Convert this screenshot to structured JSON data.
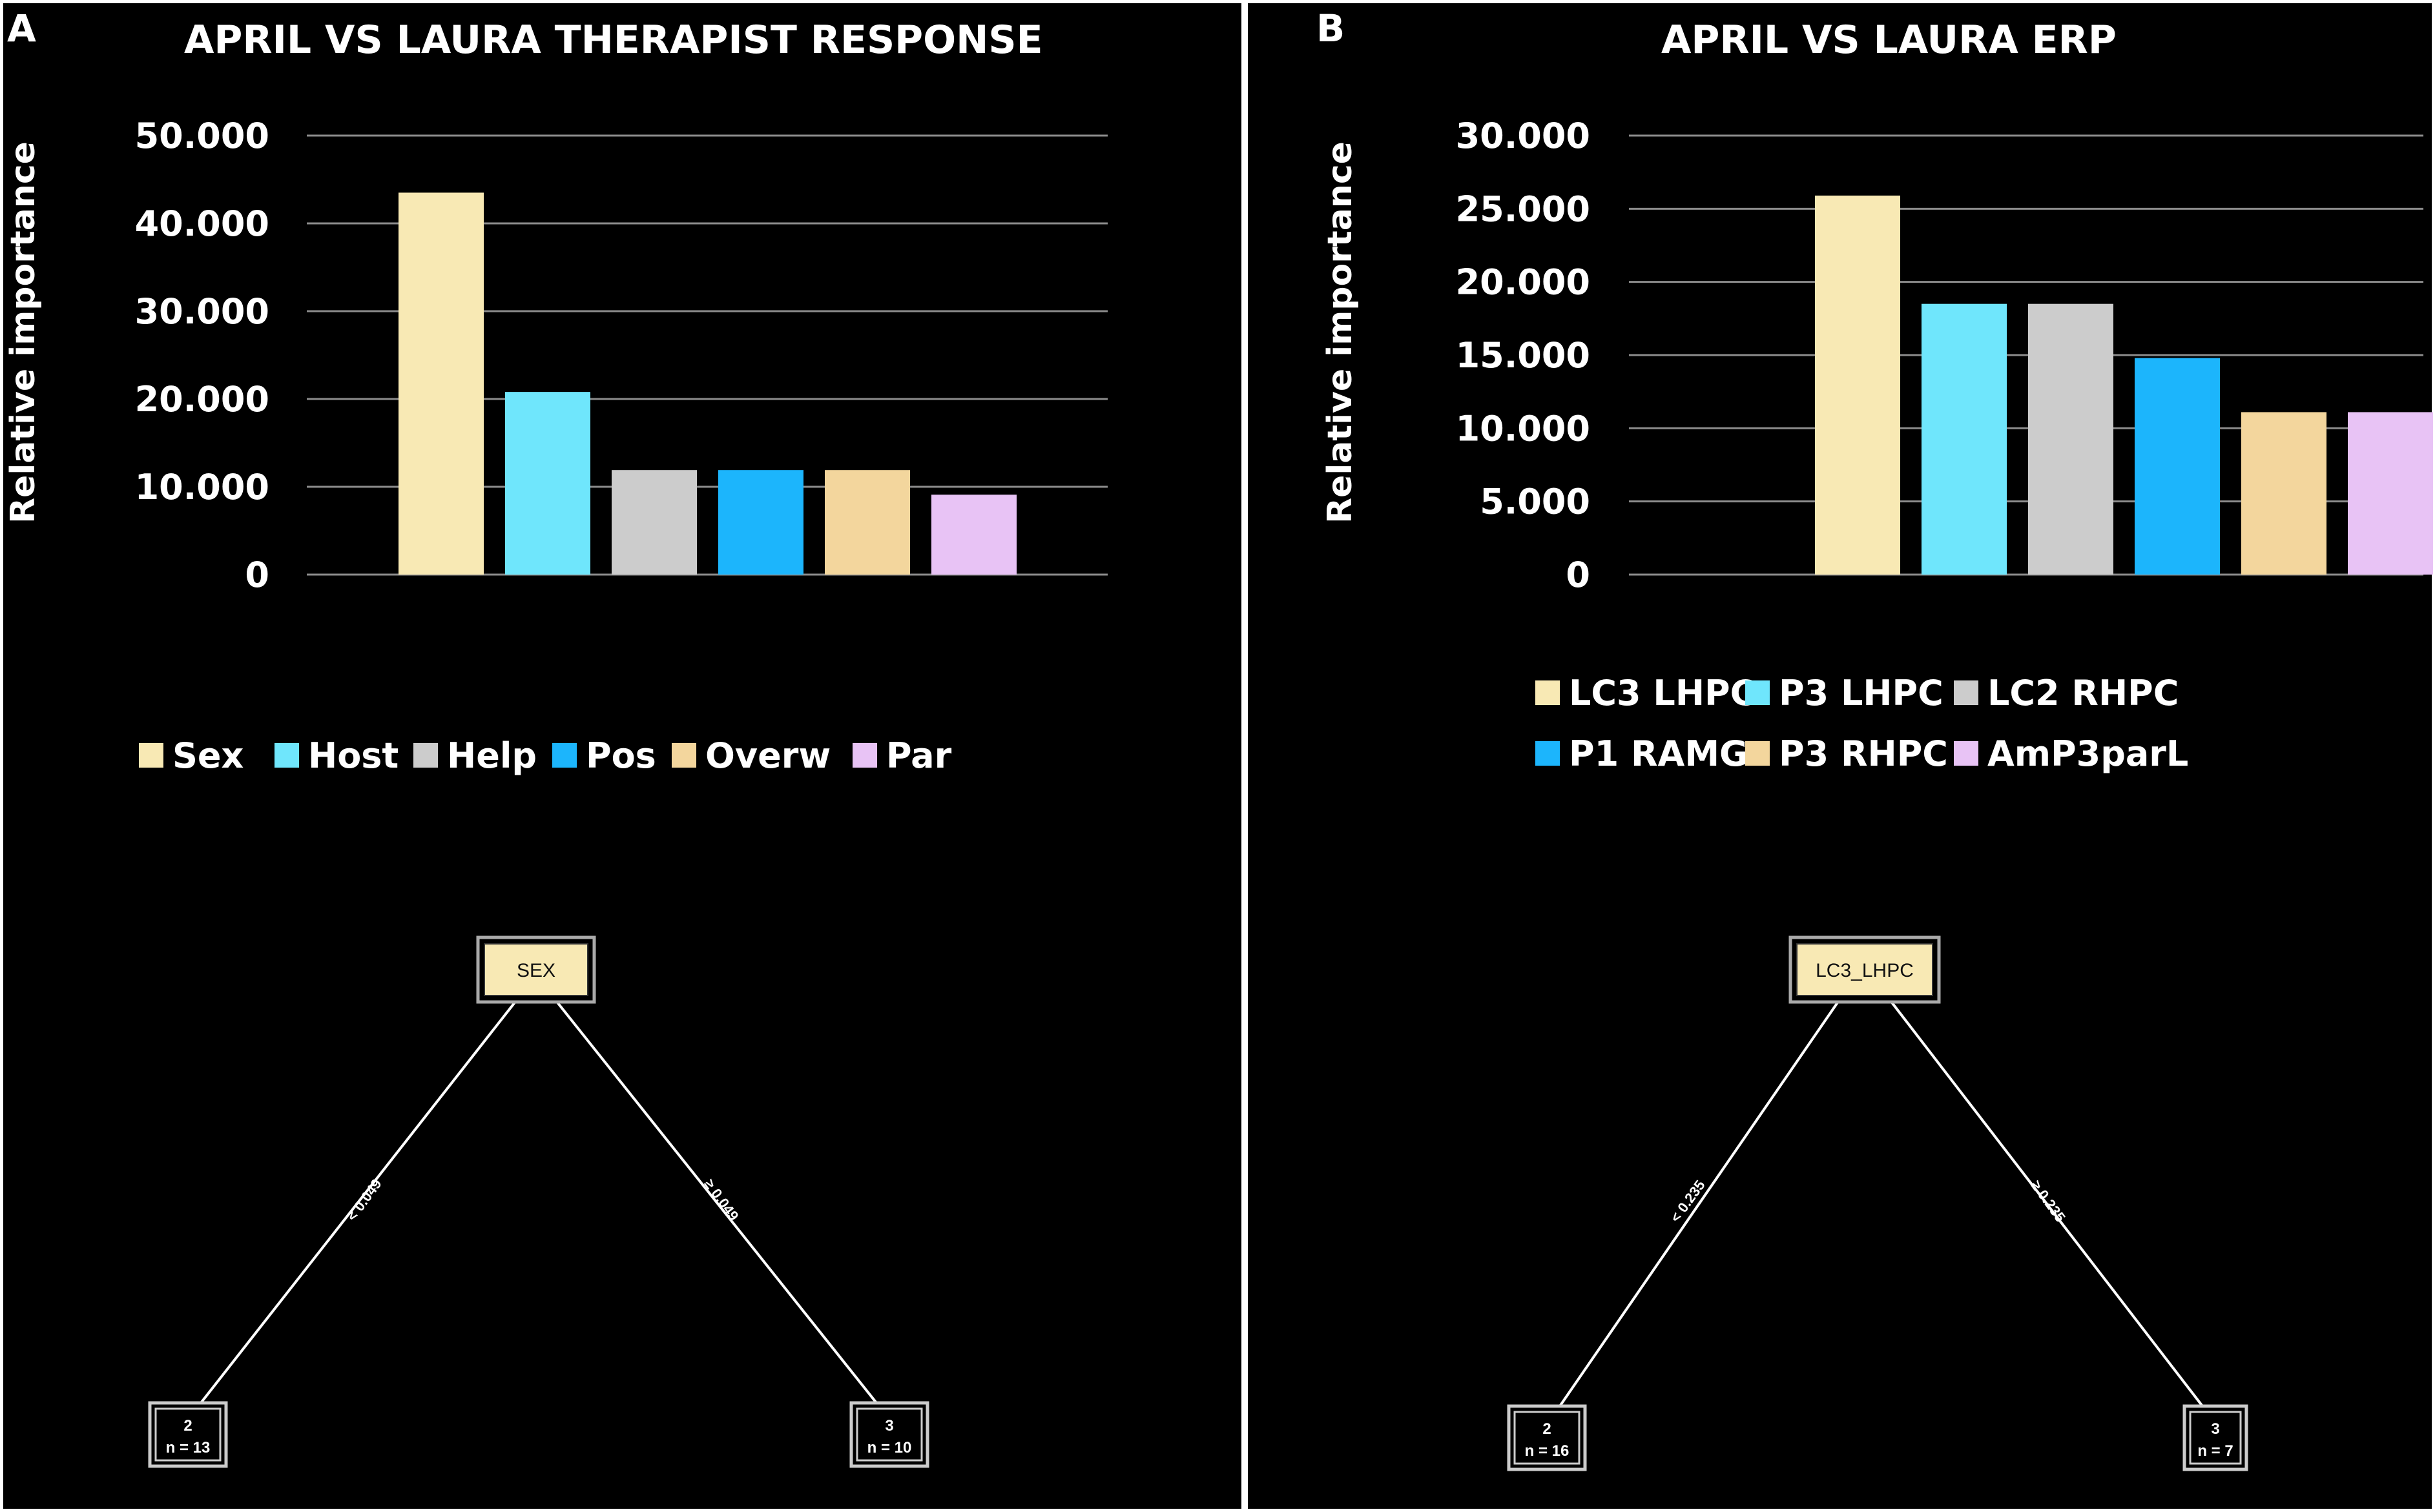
{
  "panels": [
    {
      "letter": "A",
      "title": "APRIL VS LAURA THERAPIST RESPONSE",
      "chart_data": {
        "type": "bar",
        "title": "APRIL VS LAURA THERAPIST RESPONSE",
        "xlabel": "",
        "ylabel": "Relative importance",
        "ylim": [
          0,
          50000
        ],
        "yticks": [
          "0",
          "10.000",
          "20.000",
          "30.000",
          "40.000",
          "50.000"
        ],
        "grid": true,
        "legend": "below",
        "categories": [
          "Sex",
          "Host",
          "Help",
          "Pos",
          "Overw",
          "Par"
        ],
        "values": [
          43500,
          20800,
          11900,
          11900,
          11900,
          9100
        ],
        "colors": [
          "#f8e9b4",
          "#6fe6fc",
          "#cccccc",
          "#1cb5fc",
          "#f3d69d",
          "#e8c3f5"
        ]
      },
      "tree": {
        "root": "SEX",
        "left_split": "< 0.049",
        "right_split": "≥ 0.049",
        "left_leaf": {
          "id": "2",
          "n": "n = 13"
        },
        "right_leaf": {
          "id": "3",
          "n": "n = 10"
        }
      }
    },
    {
      "letter": "B",
      "title": "APRIL VS LAURA ERP",
      "chart_data": {
        "type": "bar",
        "title": "APRIL VS LAURA ERP",
        "xlabel": "",
        "ylabel": "Relative importance",
        "ylim": [
          0,
          30000
        ],
        "yticks": [
          "0",
          "5.000",
          "10.000",
          "15.000",
          "20.000",
          "25.000",
          "30.000"
        ],
        "grid": true,
        "legend": "below",
        "categories": [
          "LC3 LHPC",
          "P3 LHPC",
          "LC2 RHPC",
          "P1 RAMG",
          "P3 RHPC",
          "AmP3parL"
        ],
        "values": [
          25900,
          18500,
          18500,
          14800,
          11100,
          11100
        ],
        "colors": [
          "#f8e9b4",
          "#6fe6fc",
          "#cccccc",
          "#1cb5fc",
          "#f3d69d",
          "#e8c3f5"
        ]
      },
      "tree": {
        "root": "LC3_LHPC",
        "left_split": "< 0.235",
        "right_split": "≥ 0.235",
        "left_leaf": {
          "id": "2",
          "n": "n = 16"
        },
        "right_leaf": {
          "id": "3",
          "n": "n = 7"
        }
      }
    }
  ]
}
